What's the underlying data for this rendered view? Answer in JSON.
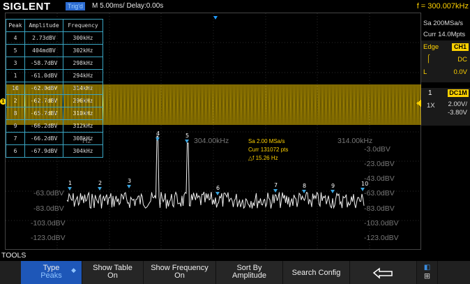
{
  "header": {
    "brand": "SIGLENT",
    "trigger_state": "Trig'd",
    "timebase": "M 5.00ms/ Delay:0.00s",
    "frequency": "f = 300.007kHz"
  },
  "right_panel": {
    "sample_rate": "Sa 200MSa/s",
    "memory": "Curr 14.0Mpts",
    "trigger_type": "Edge",
    "trigger_source": "CH1",
    "trigger_coupling": "DC",
    "trigger_level": "0.0V",
    "trigger_slope_label": "L",
    "channel_number": "1",
    "channel_badge": "DC1M",
    "probe": "1X",
    "volts_div": "2.00V/",
    "offset": "-3.80V"
  },
  "peak_table": {
    "headers": [
      "Peak",
      "Amplitude",
      "Frequency"
    ],
    "rows": [
      [
        "4",
        "2.73dBV",
        "300kHz"
      ],
      [
        "5",
        "404mdBV",
        "302kHz"
      ],
      [
        "3",
        "-58.7dBV",
        "298kHz"
      ],
      [
        "1",
        "-61.0dBV",
        "294kHz"
      ],
      [
        "10",
        "-62.0dBV",
        "314kHz"
      ],
      [
        "2",
        "-62.7dBV",
        "296kHz"
      ],
      [
        "8",
        "-65.7dBV",
        "310kHz"
      ],
      [
        "9",
        "-66.2dBV",
        "312kHz"
      ],
      [
        "7",
        "-66.2dBV",
        "308kHz"
      ],
      [
        "6",
        "-67.9dBV",
        "304kHz"
      ]
    ]
  },
  "fft_axis": {
    "freq_labels": [
      "304.00kHz",
      "314.00kHz"
    ],
    "right_db_labels": [
      "-3.0dBV",
      "-23.0dBV",
      "-43.0dBV",
      "-63.0dBV",
      "-83.0dBV",
      "-103.0dBV",
      "-123.0dBV"
    ],
    "left_db_labels": [
      "-63.0dBV",
      "-83.0dBV",
      "-103.0dBV",
      "-123.0dBV"
    ],
    "partial_label": "Hz"
  },
  "measurement": {
    "sa": "Sa 2.00 MSa/s",
    "curr": "Curr 131072 pts",
    "delta_f": "△f 15.26 Hz"
  },
  "marker_labels": [
    "1",
    "2",
    "3",
    "4",
    "5",
    "6",
    "7",
    "8",
    "9",
    "10"
  ],
  "softkeys": {
    "section_label": "TOOLS",
    "type_top": "Type",
    "type_value": "Peaks",
    "show_table_top": "Show Table",
    "show_table_value": "On",
    "show_freq_top": "Show Frequency",
    "show_freq_value": "On",
    "sort_top": "Sort By",
    "sort_value": "Amplitude",
    "search_config": "Search Config"
  },
  "colors": {
    "channel1": "#ffd200",
    "trace_fft": "#ffffff",
    "table_border": "#3aa6c4",
    "active_softkey": "#1e57b8"
  }
}
